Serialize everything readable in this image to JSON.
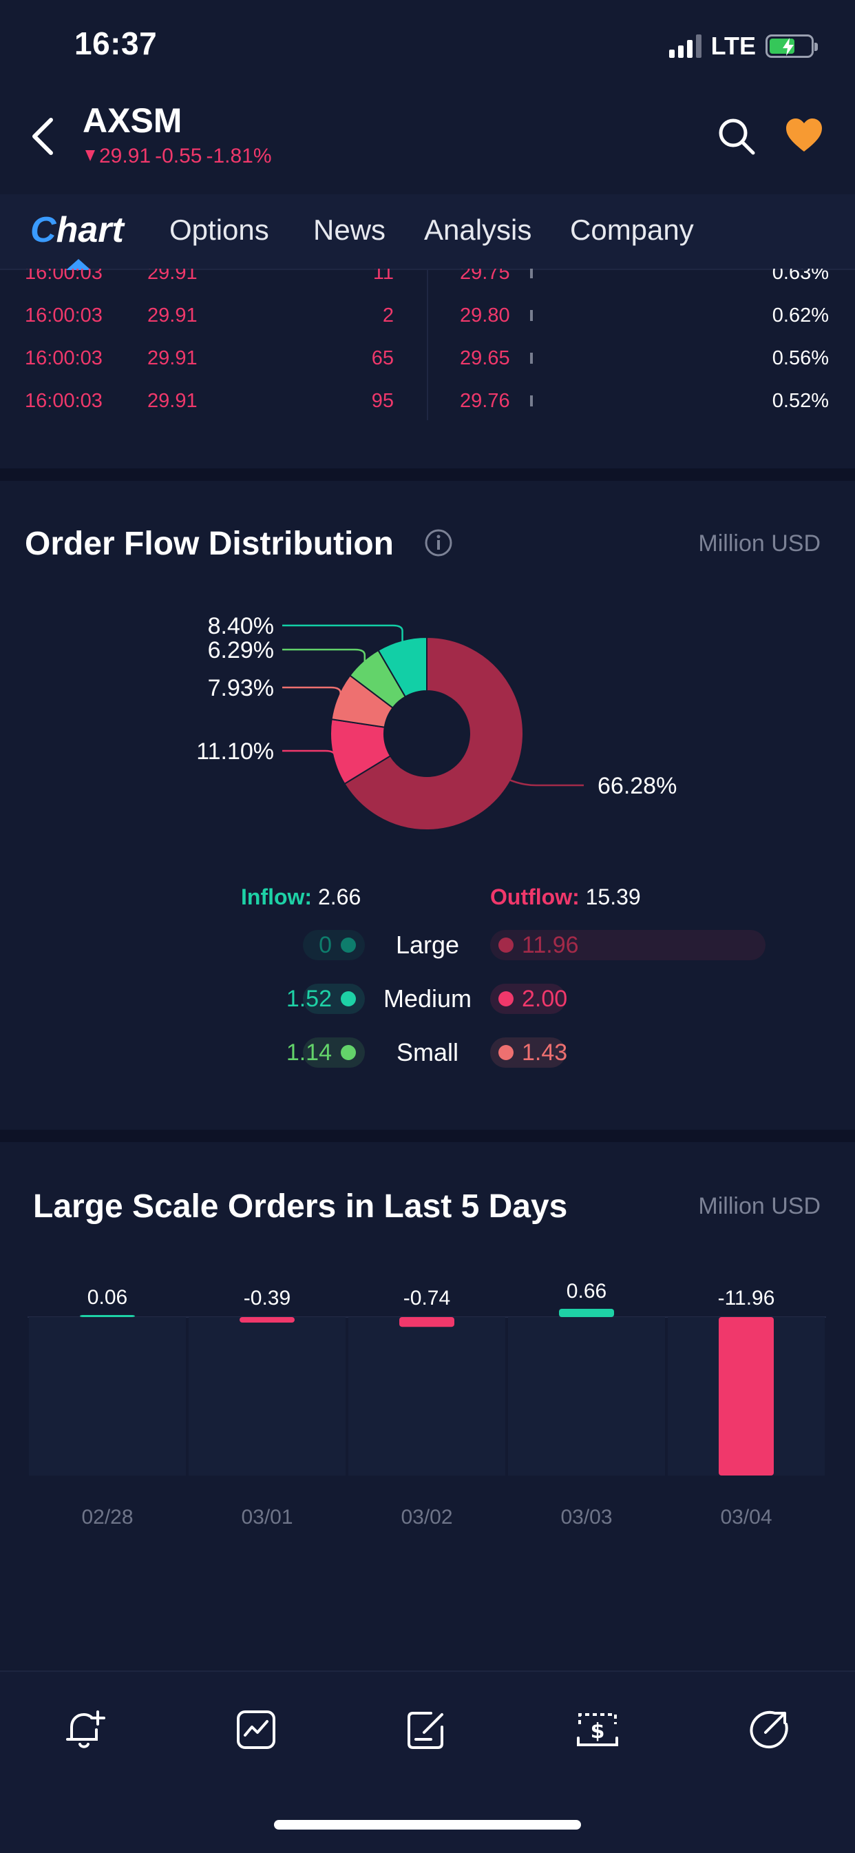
{
  "status_bar": {
    "time": "16:37",
    "network": "LTE"
  },
  "header": {
    "ticker": "AXSM",
    "price": "29.91",
    "change": "-0.55",
    "change_pct": "-1.81%"
  },
  "tabs": [
    {
      "label": "Chart",
      "active": true
    },
    {
      "label": "Options"
    },
    {
      "label": "News"
    },
    {
      "label": "Analysis"
    },
    {
      "label": "Company"
    }
  ],
  "trades": [
    {
      "time": "16:00:03",
      "price": "29.91",
      "volume": "11",
      "price2": "29.75",
      "pct": "0.63%"
    },
    {
      "time": "16:00:03",
      "price": "29.91",
      "volume": "2",
      "price2": "29.80",
      "pct": "0.62%"
    },
    {
      "time": "16:00:03",
      "price": "29.91",
      "volume": "65",
      "price2": "29.65",
      "pct": "0.56%"
    },
    {
      "time": "16:00:03",
      "price": "29.91",
      "volume": "95",
      "price2": "29.76",
      "pct": "0.52%"
    }
  ],
  "order_flow": {
    "title": "Order Flow Distribution",
    "unit": "Million USD",
    "inflow_label": "Inflow:",
    "inflow_value": "2.66",
    "outflow_label": "Outflow:",
    "outflow_value": "15.39",
    "rows": [
      {
        "label": "Large",
        "in": "0",
        "out": "11.96",
        "in_val": 0,
        "out_val": 11.96
      },
      {
        "label": "Medium",
        "in": "1.52",
        "out": "2.00",
        "in_val": 1.52,
        "out_val": 2.0
      },
      {
        "label": "Small",
        "in": "1.14",
        "out": "1.43",
        "in_val": 1.14,
        "out_val": 1.43
      }
    ],
    "colors": {
      "inflow_large": "#0e7d6c",
      "inflow_medium": "#1ed1a6",
      "inflow_small": "#63d36a",
      "outflow_large": "#a32a49",
      "outflow_medium": "#f0386b",
      "outflow_small": "#ee7070"
    }
  },
  "chart_data": [
    {
      "type": "pie",
      "slices": [
        {
          "label": "66.28%",
          "value": 66.28,
          "color": "#a32a49"
        },
        {
          "label": "11.10%",
          "value": 11.1,
          "color": "#f0386b"
        },
        {
          "label": "7.93%",
          "value": 7.93,
          "color": "#ee7070"
        },
        {
          "label": "6.29%",
          "value": 6.29,
          "color": "#63d36a"
        },
        {
          "label": "8.40%",
          "value": 8.4,
          "color": "#12cfa6"
        }
      ]
    },
    {
      "type": "bar",
      "title": "Large Scale Orders in Last 5 Days",
      "unit": "Million USD",
      "categories": [
        "02/28",
        "03/01",
        "03/02",
        "03/03",
        "03/04"
      ],
      "values": [
        0.06,
        -0.39,
        -0.74,
        0.66,
        -11.96
      ],
      "value_labels": [
        "0.06",
        "-0.39",
        "-0.74",
        "0.66",
        "-11.96"
      ],
      "positive_color": "#1ed1a6",
      "negative_color": "#f0386b"
    }
  ],
  "bottom_nav": [
    {
      "icon": "bell-plus-icon"
    },
    {
      "icon": "chart-icon"
    },
    {
      "icon": "edit-icon"
    },
    {
      "icon": "dollar-icon"
    },
    {
      "icon": "share-icon"
    }
  ]
}
